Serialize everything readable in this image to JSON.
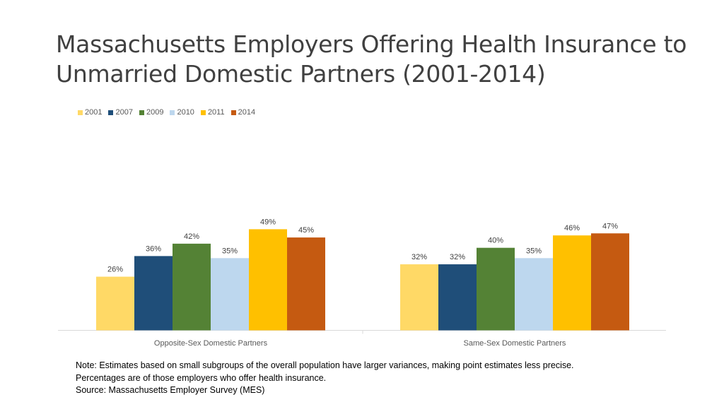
{
  "slide": {
    "title_line1": "Massachusetts Employers Offering Health Insurance to",
    "title_line2": "Unmarried Domestic Partners (2001-2014)"
  },
  "notes": {
    "line1": "Note: Estimates based on small subgroups of the overall population have larger variances, making point estimates less precise.",
    "line2": "Percentages are of those employers who offer health insurance.",
    "line3": "Source: Massachusetts Employer Survey (MES)"
  },
  "chart_data": {
    "type": "bar",
    "title": "",
    "xlabel": "",
    "ylabel": "",
    "categories": [
      "Opposite-Sex Domestic Partners",
      "Same-Sex Domestic Partners"
    ],
    "series": [
      {
        "name": "2001",
        "color": "#FFD966",
        "values": [
          26,
          32
        ],
        "labels": [
          "26%",
          "32%"
        ]
      },
      {
        "name": "2007",
        "color": "#1F4E79",
        "values": [
          36,
          32
        ],
        "labels": [
          "36%",
          "32%"
        ]
      },
      {
        "name": "2009",
        "color": "#548235",
        "values": [
          42,
          40
        ],
        "labels": [
          "42%",
          "40%"
        ]
      },
      {
        "name": "2010",
        "color": "#BDD7EE",
        "values": [
          35,
          35
        ],
        "labels": [
          "35%",
          "35%"
        ]
      },
      {
        "name": "2011",
        "color": "#FFC000",
        "values": [
          49,
          46
        ],
        "labels": [
          "49%",
          "46%"
        ]
      },
      {
        "name": "2014",
        "color": "#C55A11",
        "values": [
          45,
          47
        ],
        "labels": [
          "45%",
          "47%"
        ]
      }
    ],
    "ylim": [
      0,
      100
    ],
    "grid": false,
    "legend_position": "top-left",
    "data_labels": true
  }
}
